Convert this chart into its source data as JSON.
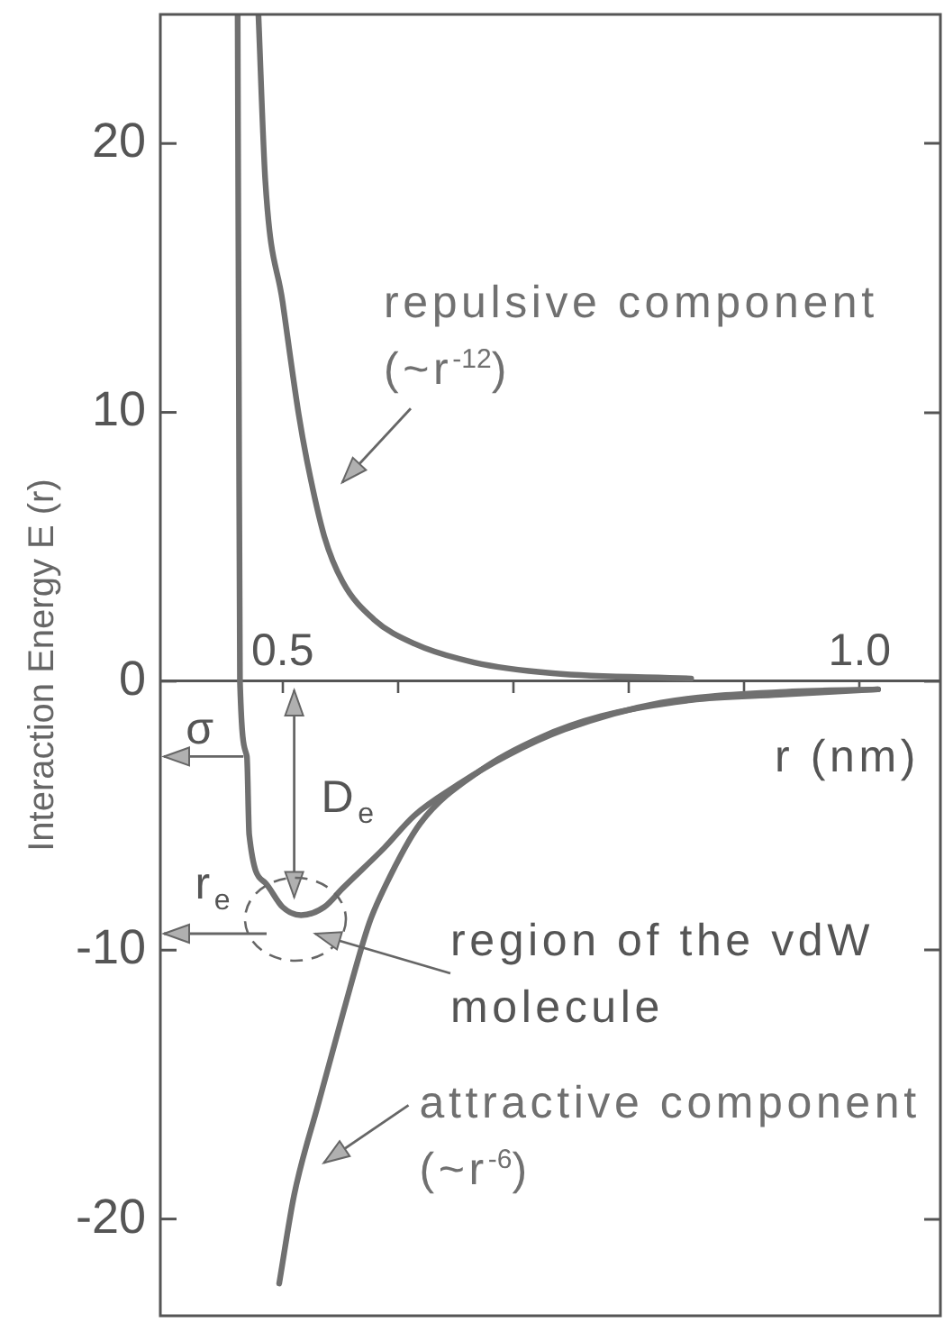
{
  "chart_data": {
    "type": "line",
    "xlabel": "r (nm)",
    "ylabel": "Interaction Energy E (r)",
    "xlim": [
      0.394,
      1.07
    ],
    "xticks": [
      0.5,
      {
        "value": 0.6,
        "label": null
      },
      {
        "value": 0.7,
        "label": null
      },
      {
        "value": 0.8,
        "label": null
      },
      {
        "value": 0.9,
        "label": null
      },
      {
        "value": 1,
        "label": "1.0"
      }
    ],
    "ylim": [
      -23.6,
      24.8
    ],
    "yticks": [
      -20,
      -10,
      0,
      10,
      20
    ],
    "marker": "none",
    "line_style": "solid",
    "series": [
      {
        "color": "#707070",
        "x": [
          0.461,
          0.462,
          0.463,
          0.469,
          0.471,
          0.485,
          0.5,
          0.516,
          0.536,
          0.552,
          0.588,
          0.614,
          0.65,
          0.693,
          0.744,
          0.828,
          0.931,
          1.016
        ],
        "values": [
          24.8,
          11.9,
          0,
          -2.8,
          -5.7,
          -7.5,
          -8.4,
          -8.7,
          -8.4,
          -7.7,
          -6.2,
          -5.0,
          -3.9,
          -2.8,
          -1.8,
          -0.8,
          -0.4,
          -0.3
        ]
      },
      {
        "name": "repulsive component (~r$^{-12}$)",
        "color": "#707070",
        "x": [
          0.479,
          0.485,
          0.5,
          0.514,
          0.522,
          0.536,
          0.552,
          0.579,
          0.614,
          0.666,
          0.734,
          0.854
        ],
        "values": [
          24.8,
          18.6,
          14.1,
          9.9,
          8.0,
          5.4,
          3.7,
          2.3,
          1.4,
          0.7,
          0.3,
          0.1
        ]
      },
      {
        "name": "attractive component (~r$^{-6}$)",
        "color": "#707070",
        "x": [
          0.497,
          0.51,
          0.531,
          0.552,
          0.575,
          0.588,
          0.619,
          0.672,
          0.723,
          0.776,
          0.854,
          0.931,
          1.016
        ],
        "values": [
          -22.4,
          -19.1,
          -15.7,
          -12.4,
          -9.0,
          -7.7,
          -5.3,
          -3.3,
          -2.1,
          -1.3,
          -0.7,
          -0.5,
          -0.3
        ]
      }
    ],
    "annotations": [
      {
        "text": "σ",
        "x": 0.466,
        "y": -2.8
      },
      {
        "text": "D$_{e}$",
        "x": 0.51,
        "y": -8.7
      },
      "r$_{e}$",
      "region of the vdW molecule"
    ]
  }
}
